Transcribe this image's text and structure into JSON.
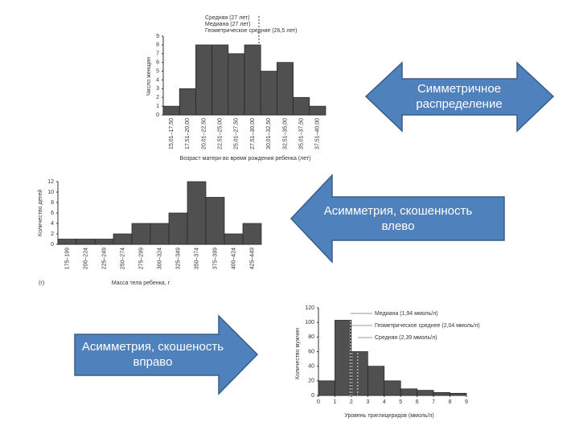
{
  "chart_data": [
    {
      "type": "bar",
      "ylabel": "Число женщин",
      "xlabel": "Возраст матери во время рождения ребенка (лет)",
      "annotations": [
        "Средняя (27 лет)",
        "Медиана (27 лет)",
        "Геометрическое средние (26,5 лет)"
      ],
      "categories": [
        "15,01–17,50",
        "17,51–20,00",
        "20,01–22,50",
        "22,51–25,00",
        "25,01–27,50",
        "27,51–30,00",
        "30,01–32,50",
        "32,51–35,00",
        "35,01–37,50",
        "37,51–40,00"
      ],
      "values": [
        1,
        3,
        8,
        8,
        7,
        8,
        5,
        6,
        2,
        1
      ],
      "color": "#505050",
      "ylim": [
        0,
        9
      ],
      "yticks": [
        0,
        1,
        2,
        3,
        4,
        5,
        6,
        7,
        8,
        9
      ]
    },
    {
      "type": "bar",
      "ylabel": "Количество детей",
      "xlabel": "Масса тела ребенка, г",
      "note": "(г)",
      "categories": [
        "175–199",
        "200–224",
        "225–249",
        "250–274",
        "275–299",
        "300–324",
        "325–349",
        "350–374",
        "375–399",
        "400–424",
        "425–449"
      ],
      "values": [
        1,
        1,
        1,
        2,
        4,
        4,
        6,
        12,
        9,
        2,
        4
      ],
      "color": "#505050",
      "ylim": [
        0,
        12
      ],
      "yticks": [
        0,
        2,
        4,
        6,
        8,
        10,
        12
      ]
    },
    {
      "type": "histogram",
      "ylabel": "Количество мужчин",
      "xlabel": "Уровень триглицеридов (ммоль/л)",
      "annotations": [
        {
          "value": 1.94,
          "label": "Медиана (1,94 ммоль/л)"
        },
        {
          "value": 2.04,
          "label": "Геометрическое среднее (2,04 ммоль/л)"
        },
        {
          "value": 2.39,
          "label": "Средняя (2,39 ммоль/л)"
        }
      ],
      "bins": [
        0,
        1,
        2,
        3,
        4,
        5,
        6,
        7,
        8,
        9
      ],
      "values": [
        20,
        103,
        60,
        40,
        20,
        9,
        7,
        4,
        3
      ],
      "color": "#505050",
      "xlim": [
        0,
        9
      ],
      "xticks": [
        0,
        1,
        2,
        3,
        4,
        5,
        6,
        7,
        8,
        9
      ],
      "ylim": [
        0,
        120
      ],
      "yticks": [
        0,
        20,
        40,
        60,
        80,
        100,
        120
      ]
    }
  ],
  "arrows": [
    "Симметричное распределение",
    "Асимметрия, скошенность влево",
    "Асимметрия, скошеность вправо"
  ]
}
